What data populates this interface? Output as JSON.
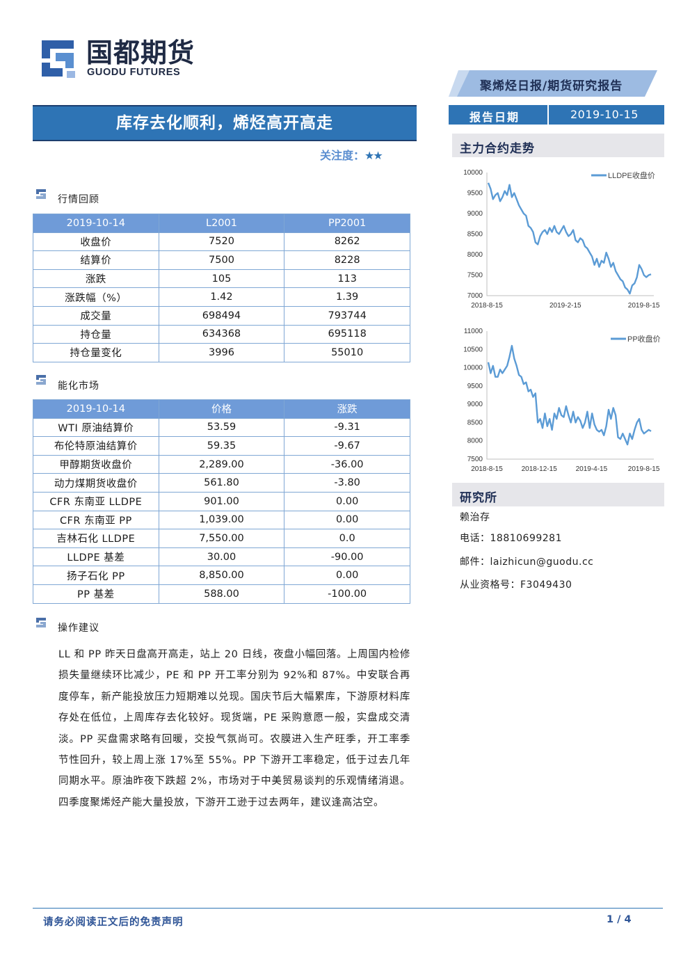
{
  "header": {
    "logo_cn": "国都期货",
    "logo_en": "GUODU FUTURES",
    "report_type": "聚烯烃日报/期货研究报告",
    "report_date_label": "报告日期",
    "report_date": "2019-10-15"
  },
  "title": "库存去化顺利，烯烃高开高走",
  "focus": {
    "label": "关注度：",
    "stars": "★★",
    "star_count": 2
  },
  "market_review": {
    "label": "行情回顾",
    "columns": [
      "2019-10-14",
      "L2001",
      "PP2001"
    ],
    "rows": [
      [
        "收盘价",
        "7520",
        "8262"
      ],
      [
        "结算价",
        "7500",
        "8228"
      ],
      [
        "涨跌",
        "105",
        "113"
      ],
      [
        "涨跌幅（%）",
        "1.42",
        "1.39"
      ],
      [
        "成交量",
        "698494",
        "793744"
      ],
      [
        "持仓量",
        "634368",
        "695118"
      ],
      [
        "持仓量变化",
        "3996",
        "55010"
      ]
    ]
  },
  "energy_market": {
    "label": "能化市场",
    "columns": [
      "2019-10-14",
      "价格",
      "涨跌"
    ],
    "rows": [
      [
        "WTI 原油结算价",
        "53.59",
        "-9.31"
      ],
      [
        "布伦特原油结算价",
        "59.35",
        "-9.67"
      ],
      [
        "甲醇期货收盘价",
        "2,289.00",
        "-36.00"
      ],
      [
        "动力煤期货收盘价",
        "561.80",
        "-3.80"
      ],
      [
        "CFR 东南亚 LLDPE",
        "901.00",
        "0.00"
      ],
      [
        "CFR 东南亚 PP",
        "1,039.00",
        "0.00"
      ],
      [
        "吉林石化 LLDPE",
        "7,550.00",
        "0.0"
      ],
      [
        "LLDPE 基差",
        "30.00",
        "-90.00"
      ],
      [
        "扬子石化 PP",
        "8,850.00",
        "0.00"
      ],
      [
        "PP 基差",
        "588.00",
        "-100.00"
      ]
    ]
  },
  "advice": {
    "label": "操作建议",
    "text": "LL 和 PP 昨天日盘高开高走，站上 20 日线，夜盘小幅回落。上周国内检修损失量继续环比减少，PE 和 PP 开工率分别为 92%和 87%。中安联合再度停车，新产能投放压力短期难以兑现。国庆节后大幅累库，下游原材料库存处在低位，上周库存去化较好。现货端，PE 采购意愿一般，实盘成交清淡。PP 买盘需求略有回暖，交投气氛尚可。农膜进入生产旺季，开工率季节性回升，较上周上涨 17%至 55%。PP 下游开工率稳定，低于过去几年同期水平。原油昨夜下跌超 2%，市场对于中美贸易谈判的乐观情绪消退。四季度聚烯烃产能大量投放，下游开工逊于过去两年，建议逢高沽空。"
  },
  "trend_panel": {
    "title": "主力合约走势"
  },
  "research_panel": {
    "title": "研究所",
    "analyst": "赖治存",
    "phone": "电话：18810699281",
    "email": "邮件：laizhicun@guodu.cc",
    "license": "从业资格号：F3049430"
  },
  "footer": {
    "disclaimer": "请务必阅读正文后的免责声明",
    "page": "1 / 4"
  },
  "colors": {
    "accent": "#2e74b5",
    "table_header": "#6f9bd8",
    "line": "#5b9bd5"
  },
  "chart_data": [
    {
      "type": "line",
      "series": [
        {
          "name": "LLDPE收盘价",
          "y": [
            9750,
            9600,
            9350,
            9450,
            9500,
            9300,
            9400,
            9550,
            9450,
            9700,
            9400,
            9500,
            9350,
            9200,
            9100,
            9000,
            8950,
            8700,
            8650,
            8550,
            8300,
            8250,
            8450,
            8550,
            8600,
            8500,
            8650,
            8550,
            8700,
            8550,
            8500,
            8600,
            8700,
            8550,
            8450,
            8500,
            8600,
            8350,
            8300,
            8400,
            8350,
            8200,
            8150,
            8050,
            7950,
            7750,
            7900,
            7700,
            7850,
            7800,
            8050,
            7900,
            7700,
            7800,
            7600,
            7500,
            7400,
            7350,
            7200,
            7150,
            7050,
            7250,
            7300,
            7450,
            7750,
            7650,
            7500,
            7450,
            7500,
            7520
          ]
        }
      ],
      "x_ticks": [
        "2018-8-15",
        "2019-2-15",
        "2019-8-15"
      ],
      "y_ticks": [
        7000,
        7500,
        8000,
        8500,
        9000,
        9500,
        10000
      ],
      "ylim": [
        7000,
        10000
      ],
      "legend": "top-right"
    },
    {
      "type": "line",
      "series": [
        {
          "name": "PP收盘价",
          "y": [
            10150,
            9850,
            10050,
            9750,
            9750,
            9950,
            9850,
            9950,
            10050,
            10300,
            10600,
            10250,
            10050,
            9800,
            9750,
            9550,
            9600,
            9350,
            9400,
            9200,
            9300,
            8500,
            8600,
            8350,
            8750,
            8400,
            8600,
            8300,
            8750,
            8600,
            8900,
            8700,
            8650,
            8950,
            8700,
            8500,
            8800,
            8500,
            8650,
            8550,
            8350,
            8500,
            8800,
            8350,
            8750,
            8450,
            8300,
            8250,
            8300,
            8150,
            8400,
            8850,
            8600,
            8900,
            8700,
            8100,
            8050,
            8200,
            8050,
            7900,
            8200,
            8050,
            8300,
            8500,
            8600,
            8300,
            8200,
            8250,
            8300,
            8262
          ]
        }
      ],
      "x_ticks": [
        "2018-8-15",
        "2018-12-15",
        "2019-4-15",
        "2019-8-15"
      ],
      "y_ticks": [
        7500,
        8000,
        8500,
        9000,
        9500,
        10000,
        10500,
        11000
      ],
      "ylim": [
        7500,
        11000
      ],
      "legend": "top-right"
    }
  ]
}
